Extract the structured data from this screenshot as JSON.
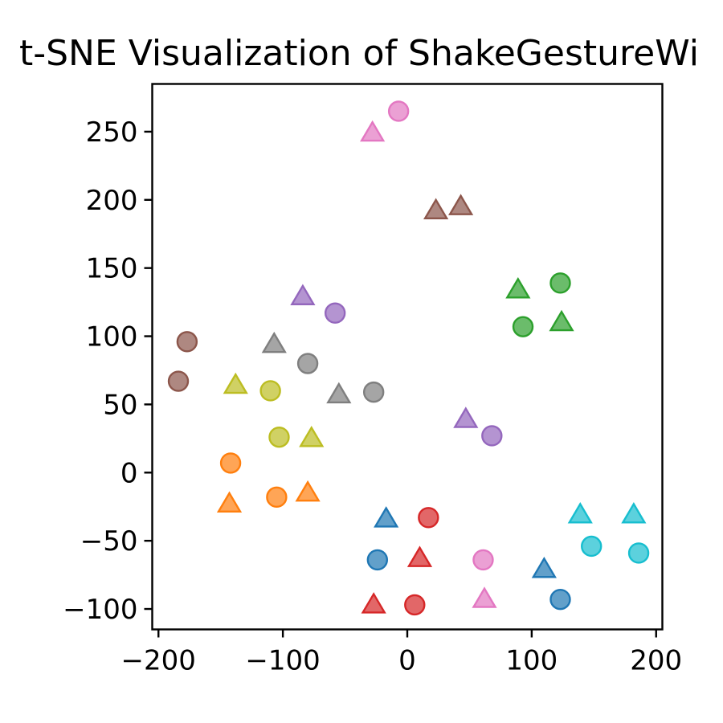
{
  "chart_data": {
    "type": "scatter",
    "title": "t-SNE Visualization of ShakeGestureWi",
    "xlabel": "",
    "ylabel": "",
    "xlim": [
      -205,
      205
    ],
    "ylim": [
      -115,
      285
    ],
    "xticks": [
      {
        "value": -200,
        "label": "−200"
      },
      {
        "value": -100,
        "label": "−100"
      },
      {
        "value": 0,
        "label": "0"
      },
      {
        "value": 100,
        "label": "100"
      },
      {
        "value": 200,
        "label": "200"
      }
    ],
    "yticks": [
      {
        "value": -100,
        "label": "−100"
      },
      {
        "value": -50,
        "label": "−50"
      },
      {
        "value": 0,
        "label": "0"
      },
      {
        "value": 50,
        "label": "50"
      },
      {
        "value": 100,
        "label": "100"
      },
      {
        "value": 150,
        "label": "150"
      },
      {
        "value": 200,
        "label": "200"
      },
      {
        "value": 250,
        "label": "250"
      }
    ],
    "grid": false,
    "legend": "none",
    "series": [
      {
        "color": "#1f77b4",
        "points": [
          {
            "x": -24,
            "y": -64,
            "marker": "circle"
          },
          {
            "x": 123,
            "y": -93,
            "marker": "circle"
          },
          {
            "x": -17,
            "y": -34,
            "marker": "triangle"
          },
          {
            "x": 110,
            "y": -71,
            "marker": "triangle"
          }
        ]
      },
      {
        "color": "#ff7f0e",
        "points": [
          {
            "x": -142,
            "y": 7,
            "marker": "circle"
          },
          {
            "x": -105,
            "y": -18,
            "marker": "circle"
          },
          {
            "x": -143,
            "y": -23,
            "marker": "triangle"
          },
          {
            "x": -80,
            "y": -15,
            "marker": "triangle"
          }
        ]
      },
      {
        "color": "#2ca02c",
        "points": [
          {
            "x": 123,
            "y": 139,
            "marker": "circle"
          },
          {
            "x": 93,
            "y": 107,
            "marker": "circle"
          },
          {
            "x": 89,
            "y": 134,
            "marker": "triangle"
          },
          {
            "x": 124,
            "y": 110,
            "marker": "triangle"
          }
        ]
      },
      {
        "color": "#d62728",
        "points": [
          {
            "x": 17,
            "y": -33,
            "marker": "circle"
          },
          {
            "x": 6,
            "y": -97,
            "marker": "circle"
          },
          {
            "x": 10,
            "y": -63,
            "marker": "triangle"
          },
          {
            "x": -27,
            "y": -97,
            "marker": "triangle"
          }
        ]
      },
      {
        "color": "#9467bd",
        "points": [
          {
            "x": -58,
            "y": 117,
            "marker": "circle"
          },
          {
            "x": 68,
            "y": 27,
            "marker": "circle"
          },
          {
            "x": -84,
            "y": 129,
            "marker": "triangle"
          },
          {
            "x": 47,
            "y": 39,
            "marker": "triangle"
          }
        ]
      },
      {
        "color": "#8c564b",
        "points": [
          {
            "x": -177,
            "y": 96,
            "marker": "circle"
          },
          {
            "x": -184,
            "y": 67,
            "marker": "circle"
          },
          {
            "x": 23,
            "y": 192,
            "marker": "triangle"
          },
          {
            "x": 43,
            "y": 195,
            "marker": "triangle"
          }
        ]
      },
      {
        "color": "#e377c2",
        "points": [
          {
            "x": -7,
            "y": 265,
            "marker": "circle"
          },
          {
            "x": 61,
            "y": -64,
            "marker": "circle"
          },
          {
            "x": -28,
            "y": 249,
            "marker": "triangle"
          },
          {
            "x": 62,
            "y": -93,
            "marker": "triangle"
          }
        ]
      },
      {
        "color": "#7f7f7f",
        "points": [
          {
            "x": -80,
            "y": 80,
            "marker": "circle"
          },
          {
            "x": -27,
            "y": 59,
            "marker": "circle"
          },
          {
            "x": -107,
            "y": 94,
            "marker": "triangle"
          },
          {
            "x": -55,
            "y": 57,
            "marker": "triangle"
          }
        ]
      },
      {
        "color": "#bcbd22",
        "points": [
          {
            "x": -110,
            "y": 60,
            "marker": "circle"
          },
          {
            "x": -103,
            "y": 26,
            "marker": "circle"
          },
          {
            "x": -138,
            "y": 64,
            "marker": "triangle"
          },
          {
            "x": -77,
            "y": 25,
            "marker": "triangle"
          }
        ]
      },
      {
        "color": "#17becf",
        "points": [
          {
            "x": 148,
            "y": -54,
            "marker": "circle"
          },
          {
            "x": 186,
            "y": -59,
            "marker": "circle"
          },
          {
            "x": 139,
            "y": -31,
            "marker": "triangle"
          },
          {
            "x": 182,
            "y": -31,
            "marker": "triangle"
          }
        ]
      }
    ]
  }
}
